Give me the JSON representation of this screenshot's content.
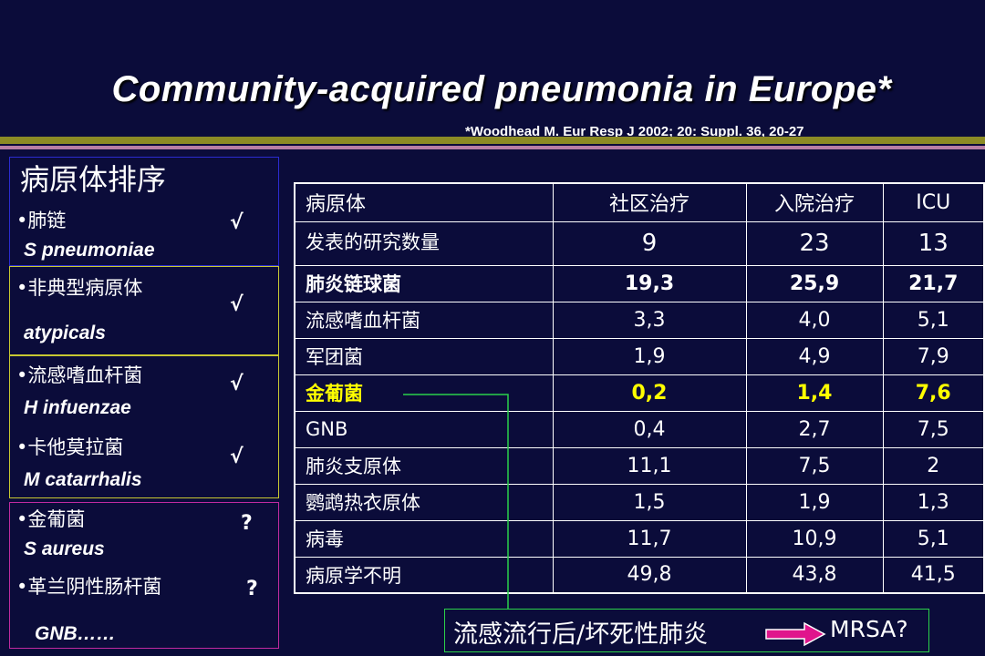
{
  "slide": {
    "title": "Community-acquired pneumonia in Europe*",
    "citation": "*Woodhead M. Eur Resp J 2002; 20: Suppl. 36, 20-27"
  },
  "left_panel": {
    "header": "病原体排序",
    "items": [
      {
        "cn": "•肺链",
        "en": "S pneumoniae",
        "mark": "√"
      },
      {
        "cn": "•非典型病原体",
        "en": "atypicals",
        "mark": "√"
      },
      {
        "cn": "•流感嗜血杆菌",
        "en": "H  infuenzae",
        "mark": "√"
      },
      {
        "cn": "•卡他莫拉菌",
        "en": "M catarrhalis",
        "mark": "√"
      },
      {
        "cn": "•金葡菌",
        "en": "S aureus",
        "mark": "?"
      },
      {
        "cn": "•革兰阴性肠杆菌",
        "en": "GNB……",
        "mark": "?"
      }
    ]
  },
  "table": {
    "headers": [
      "病原体",
      "社区治疗",
      "入院治疗",
      "ICU"
    ],
    "rows": [
      [
        "发表的研究数量",
        "9",
        "23",
        "13"
      ],
      [
        "肺炎链球菌",
        "19,3",
        "25,9",
        "21,7"
      ],
      [
        "流感嗜血杆菌",
        "3,3",
        "4,0",
        "5,1"
      ],
      [
        "军团菌",
        "1,9",
        "4,9",
        "7,9"
      ],
      [
        "金葡菌",
        "0,2",
        "1,4",
        "7,6"
      ],
      [
        "GNB",
        "0,4",
        "2,7",
        "7,5"
      ],
      [
        "肺炎支原体",
        "11,1",
        "7,5",
        "2"
      ],
      [
        "鹦鹉热衣原体",
        "1,5",
        "1,9",
        "1,3"
      ],
      [
        "病毒",
        "11,7",
        "10,9",
        "5,1"
      ],
      [
        "病原学不明",
        "49,8",
        "43,8",
        "41,5"
      ]
    ]
  },
  "note": {
    "text": "流感流行后/坏死性肺炎",
    "suffix": "MRSA?"
  },
  "colors": {
    "background": "#0b0c3a",
    "highlight": "#ffff00",
    "stripe_olive": "#8c8b25",
    "stripe_pink": "#b87fa5",
    "arrow_fill": "#e0158c",
    "connector": "#2bd24a"
  }
}
